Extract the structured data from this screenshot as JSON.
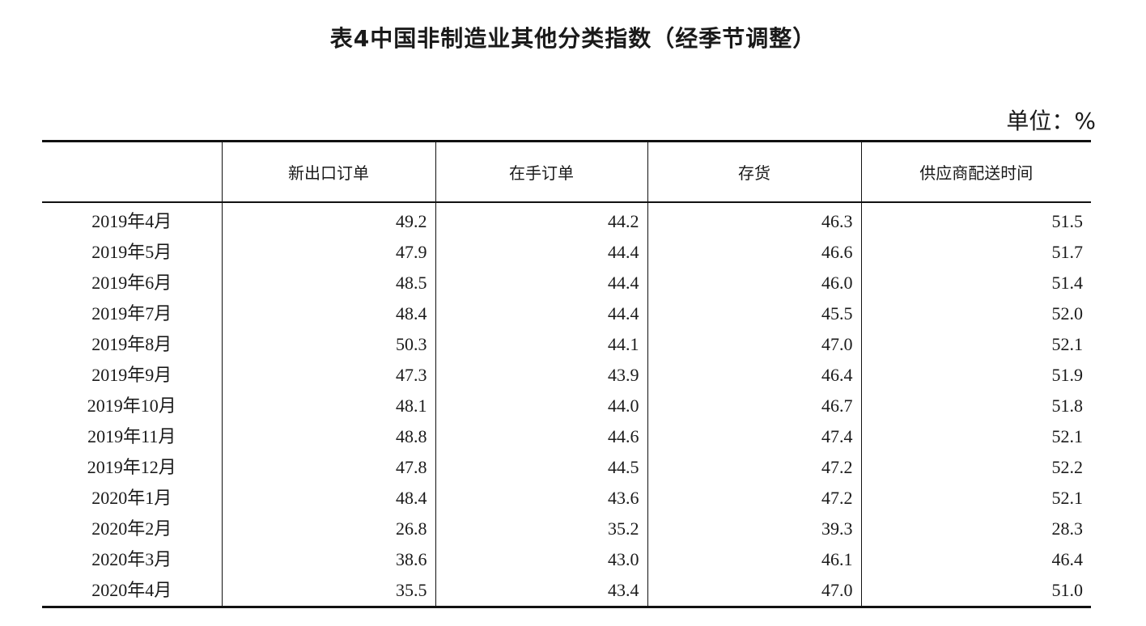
{
  "title": "表4中国非制造业其他分类指数（经季节调整）",
  "unit": "单位：%",
  "headers": [
    "",
    "新出口订单",
    "在手订单",
    "存货",
    "供应商配送时间"
  ],
  "rows": [
    {
      "month": "2019年4月",
      "values": [
        "49.2",
        "44.2",
        "46.3",
        "51.5"
      ]
    },
    {
      "month": "2019年5月",
      "values": [
        "47.9",
        "44.4",
        "46.6",
        "51.7"
      ]
    },
    {
      "month": "2019年6月",
      "values": [
        "48.5",
        "44.4",
        "46.0",
        "51.4"
      ]
    },
    {
      "month": "2019年7月",
      "values": [
        "48.4",
        "44.4",
        "45.5",
        "52.0"
      ]
    },
    {
      "month": "2019年8月",
      "values": [
        "50.3",
        "44.1",
        "47.0",
        "52.1"
      ]
    },
    {
      "month": "2019年9月",
      "values": [
        "47.3",
        "43.9",
        "46.4",
        "51.9"
      ]
    },
    {
      "month": "2019年10月",
      "values": [
        "48.1",
        "44.0",
        "46.7",
        "51.8"
      ]
    },
    {
      "month": "2019年11月",
      "values": [
        "48.8",
        "44.6",
        "47.4",
        "52.1"
      ]
    },
    {
      "month": "2019年12月",
      "values": [
        "47.8",
        "44.5",
        "47.2",
        "52.2"
      ]
    },
    {
      "month": "2020年1月",
      "values": [
        "48.4",
        "43.6",
        "47.2",
        "52.1"
      ]
    },
    {
      "month": "2020年2月",
      "values": [
        "26.8",
        "35.2",
        "39.3",
        "28.3"
      ]
    },
    {
      "month": "2020年3月",
      "values": [
        "38.6",
        "43.0",
        "46.1",
        "46.4"
      ]
    },
    {
      "month": "2020年4月",
      "values": [
        "35.5",
        "43.4",
        "47.0",
        "51.0"
      ]
    }
  ]
}
